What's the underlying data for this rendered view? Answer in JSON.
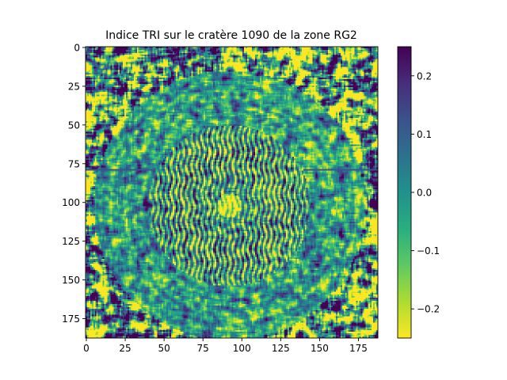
{
  "chart_data": {
    "type": "heatmap",
    "title": "Indice TRI sur le cratère 1090 de la zone RG2",
    "xlabel": "",
    "ylabel": "",
    "xlim": [
      0,
      188
    ],
    "ylim": [
      188,
      0
    ],
    "x_ticks": [
      "0",
      "25",
      "50",
      "75",
      "100",
      "125",
      "150",
      "175"
    ],
    "y_ticks": [
      "0",
      "25",
      "50",
      "75",
      "100",
      "125",
      "150",
      "175"
    ],
    "colormap": "viridis_r",
    "colorbar": {
      "range": [
        -0.25,
        0.25
      ],
      "ticks": [
        "0.2",
        "0.1",
        "0.0",
        "−0.1",
        "−0.2"
      ],
      "top_color": "#440154",
      "bottom_color": "#fde725"
    },
    "grid": false,
    "legend": "none",
    "dimensions": [
      188,
      188
    ],
    "features": {
      "crater_center": [
        92,
        102
      ],
      "crater_radius": 52,
      "floor_texture": "strong alternating stripes",
      "horizontal_artifact_row": 79
    }
  }
}
